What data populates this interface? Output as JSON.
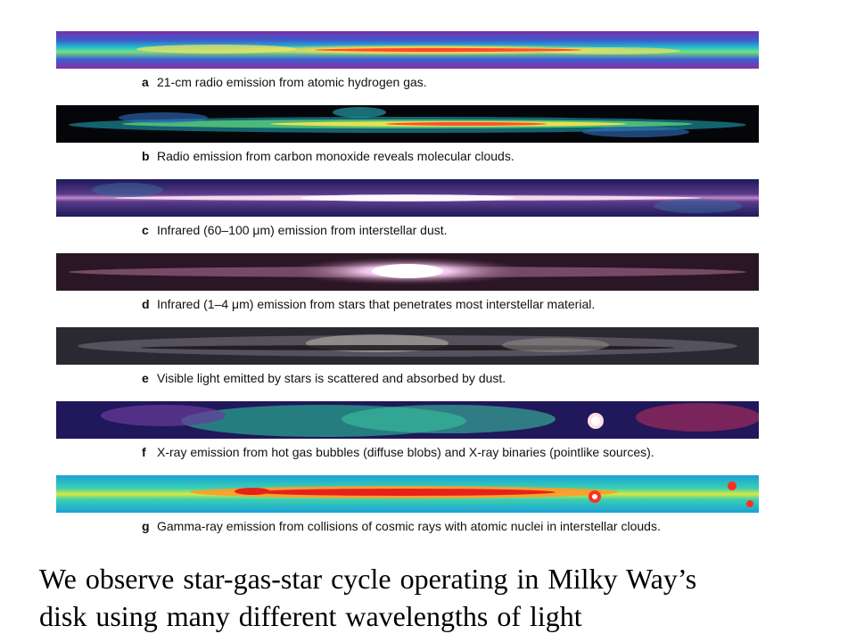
{
  "panels": [
    {
      "letter": "a",
      "text": "21-cm radio emission from atomic hydrogen gas."
    },
    {
      "letter": "b",
      "text": "Radio emission from carbon monoxide reveals molecular clouds."
    },
    {
      "letter": "c",
      "text": "Infrared (60–100 μm) emission from interstellar dust."
    },
    {
      "letter": "d",
      "text": "Infrared (1–4 μm) emission from stars that penetrates most interstellar material."
    },
    {
      "letter": "e",
      "text": "Visible light emitted by stars is scattered and absorbed by dust."
    },
    {
      "letter": "f",
      "text": "X-ray emission from hot gas bubbles (diffuse blobs) and X-ray binaries (pointlike sources)."
    },
    {
      "letter": "g",
      "text": "Gamma-ray emission from collisions of cosmic rays with atomic nuclei in interstellar clouds."
    }
  ],
  "summary": {
    "line1": "We observe star-gas-star cycle operating in Milky Way’s",
    "line2": "disk using many different wavelengths of light"
  }
}
